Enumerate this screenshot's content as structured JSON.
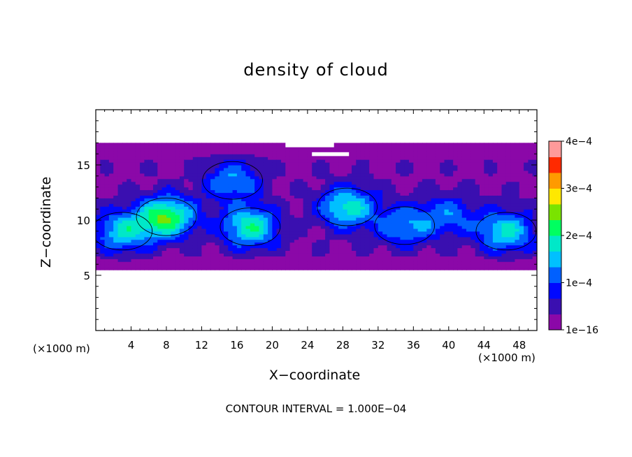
{
  "chart_data": {
    "type": "heatmap",
    "title": "density of cloud",
    "xlabel": "X−coordinate",
    "ylabel": "Z−coordinate",
    "x_unit_label": "(×1000 m)",
    "footer": "CONTOUR INTERVAL = 1.000E−04",
    "xlim": [
      0,
      50
    ],
    "ylim": [
      0,
      20
    ],
    "x_ticks": [
      4,
      8,
      12,
      16,
      20,
      24,
      28,
      32,
      36,
      40,
      44,
      48
    ],
    "y_ticks": [
      5,
      10,
      15
    ],
    "colorbar": {
      "range": [
        0,
        0.0004
      ],
      "ticks": [
        {
          "value": 0,
          "label": "1e−16"
        },
        {
          "value": 0.0001,
          "label": "1e−4"
        },
        {
          "value": 0.0002,
          "label": "2e−4"
        },
        {
          "value": 0.0003,
          "label": "3e−4"
        },
        {
          "value": 0.0004,
          "label": "4e−4"
        }
      ],
      "colors": [
        "#8b08a8",
        "#3a0fb0",
        "#0008ff",
        "#0060ff",
        "#00c0ff",
        "#00e8c8",
        "#00ff60",
        "#7ae300",
        "#ffe800",
        "#ff9a00",
        "#ff2a00",
        "#ff9a9a"
      ]
    },
    "cloud_extent": {
      "x": [
        0,
        50
      ],
      "z_bottom": 5.5,
      "z_top": 17
    },
    "contour_levels": [
      0.0001
    ],
    "blobs": [
      {
        "x": 8,
        "z": 10.3,
        "peak": 0.00021
      },
      {
        "x": 3,
        "z": 9.0,
        "peak": 0.00014
      },
      {
        "x": 17.5,
        "z": 9.4,
        "peak": 0.00017
      },
      {
        "x": 28.5,
        "z": 11.2,
        "peak": 0.00016
      },
      {
        "x": 15.5,
        "z": 13.6,
        "peak": 0.00011
      },
      {
        "x": 46.5,
        "z": 9.0,
        "peak": 0.00015
      },
      {
        "x": 35,
        "z": 9.5,
        "peak": 0.00011
      },
      {
        "x": 40,
        "z": 10.5,
        "peak": 9e-05
      }
    ]
  }
}
